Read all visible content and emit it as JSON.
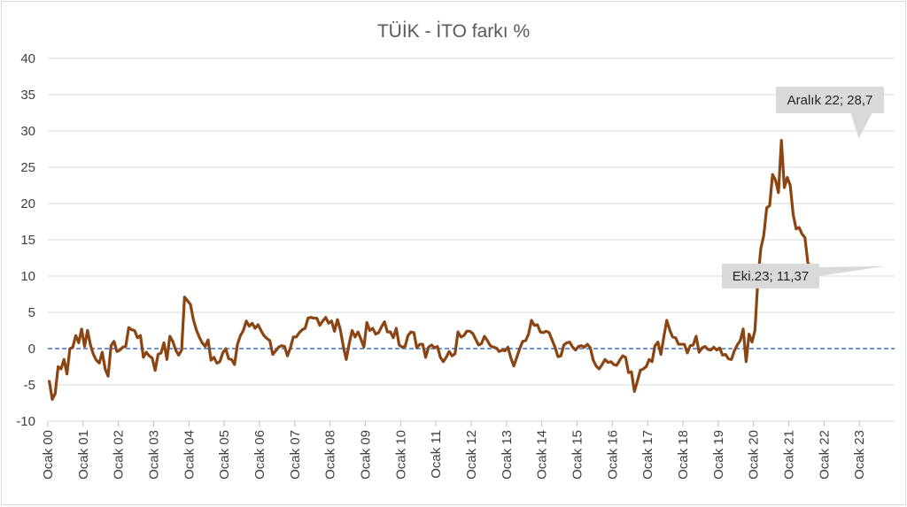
{
  "chart_data": {
    "type": "line",
    "title": "TÜİK - İTO farkı %",
    "xlabel": "",
    "ylabel": "",
    "ylim": [
      -10,
      40
    ],
    "yticks": [
      -10,
      -5,
      0,
      5,
      10,
      15,
      20,
      25,
      30,
      35,
      40
    ],
    "x_tick_labels": [
      "Ocak 00",
      "Ocak 01",
      "Ocak 02",
      "Ocak 03",
      "Ocak 04",
      "Ocak 05",
      "Ocak 06",
      "Ocak 07",
      "Ocak 08",
      "Ocak 09",
      "Ocak 10",
      "Ocak 11",
      "Ocak 12",
      "Ocak 13",
      "Ocak 14",
      "Ocak 15",
      "Ocak 16",
      "Ocak 17",
      "Ocak 18",
      "Ocak 19",
      "Ocak 20",
      "Ocak 21",
      "Ocak 22",
      "Ocak 23"
    ],
    "grid": "horizontal",
    "reference_line": {
      "y": 0,
      "style": "dashed",
      "color": "#4472c4"
    },
    "line_color": "#8b4513",
    "series": [
      {
        "values": [
          -4.5,
          -7,
          -6.2,
          -2.5,
          -2.8,
          -1.5,
          -3.5,
          0,
          0.2,
          1.8,
          0.8,
          2.7,
          0.3,
          2.5,
          0.5,
          -0.8,
          -1.6,
          -2,
          -0.5,
          -2.8,
          -3.8,
          0.4,
          1,
          -0.4,
          -0.2,
          0.2,
          0.3,
          2.9,
          2.6,
          2.5,
          1.5,
          1.8,
          -1.2,
          -0.5,
          -1,
          -1.3,
          -3,
          -0.8,
          -0.6,
          0.8,
          -1.5,
          1.7,
          1,
          -0.2,
          -0.9,
          -0.2,
          7.1,
          6.6,
          6.1,
          4,
          2.6,
          1.6,
          0.8,
          0.3,
          1.2,
          -1.6,
          -1.2,
          -2,
          -1.8,
          -0.6,
          0,
          -1.4,
          -1.5,
          -2.2,
          0.6,
          1.8,
          2.5,
          3.8,
          3.1,
          3.5,
          2.8,
          3.3,
          2.5,
          1.8,
          1.4,
          1.1,
          -0.8,
          -0.3,
          0.2,
          0.4,
          0.3,
          -1,
          0.1,
          1.6,
          1.6,
          2.2,
          2.6,
          2.8,
          4.2,
          4.3,
          4.2,
          4.2,
          3.2,
          3.8,
          4.3,
          3.5,
          3.8,
          2.4,
          4,
          2.6,
          0.3,
          -1.5,
          0.7,
          2.5,
          1.6,
          2.3,
          1.3,
          0.2,
          3.6,
          2.5,
          2.8,
          2,
          2.2,
          3,
          3.7,
          2.3,
          2.3,
          1.5,
          2.8,
          0.5,
          0.2,
          0.3,
          1.8,
          2.3,
          2.2,
          0.1,
          0.6,
          0.6,
          -1.2,
          0.2,
          0.5,
          0.1,
          0.3,
          -1.2,
          -1.8,
          -1.2,
          -0.4,
          -1,
          -0.7,
          2.3,
          1.6,
          1.8,
          2.4,
          2.4,
          2.1,
          1.3,
          0.5,
          0.7,
          1.7,
          1.1,
          0.4,
          0.2,
          0.1,
          -0.4,
          -0.2,
          -0.3,
          0.2,
          -1.3,
          -2.4,
          -1.2,
          0,
          1,
          1.1,
          2,
          3.9,
          3.2,
          3.3,
          2.3,
          2.2,
          2.4,
          2.2,
          1.2,
          0.2,
          -1.1,
          -1,
          0.5,
          0.8,
          0.9,
          0.2,
          -0.2,
          0.3,
          0.4,
          0.2,
          0.6,
          0.1,
          -1.6,
          -2.4,
          -2.8,
          -2.2,
          -1.5,
          -1.9,
          -1.8,
          -2.2,
          -2.3,
          -1.6,
          -1,
          -1.2,
          -3.3,
          -3.2,
          -5.9,
          -4.5,
          -3,
          -2.8,
          -2.5,
          -1.5,
          -1.8,
          0.4,
          0.9,
          -0.8,
          1.6,
          3.9,
          2.6,
          1.6,
          1.5,
          0.6,
          0.6,
          0.6,
          -0.6,
          0.4,
          0.5,
          1.7,
          -0.5,
          0.1,
          0.3,
          -0.1,
          -0.2,
          0.2,
          -0.2,
          0.1,
          -0.9,
          -0.8,
          -1.4,
          -1.5,
          -0.3,
          0.5,
          1.1,
          2.7,
          -1.8,
          2,
          0.9,
          2.5,
          9.5,
          13.8,
          15.6,
          19.4,
          19.7,
          24,
          23.2,
          21.5,
          28.7,
          22.2,
          23.6,
          22.5,
          18.5,
          16.5,
          16.7,
          15.8,
          15.3,
          11.8,
          11.37
        ]
      }
    ],
    "annotations": [
      {
        "label": "Aralık 22; 28,7",
        "x_index": 275,
        "y": 28.7
      },
      {
        "label": "Eki.23; 11,37",
        "x_index": 285,
        "y": 11.37
      }
    ]
  }
}
